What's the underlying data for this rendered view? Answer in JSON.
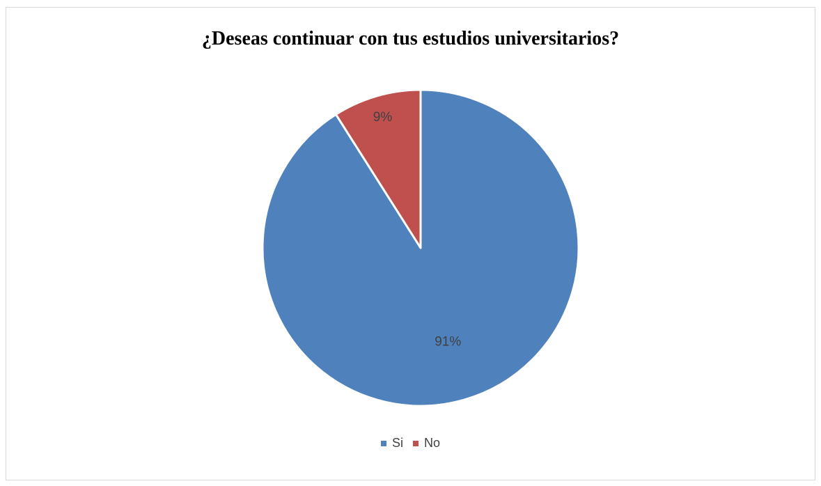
{
  "chart_data": {
    "type": "pie",
    "title": "¿Deseas continuar con tus estudios universitarios?",
    "categories": [
      "Si",
      "No"
    ],
    "values": [
      91,
      9
    ],
    "data_labels": [
      "91%",
      "9%"
    ],
    "colors": [
      "#4f81bd",
      "#c0504d"
    ],
    "legend_position": "bottom",
    "start_angle_deg": 0,
    "direction": "clockwise"
  }
}
